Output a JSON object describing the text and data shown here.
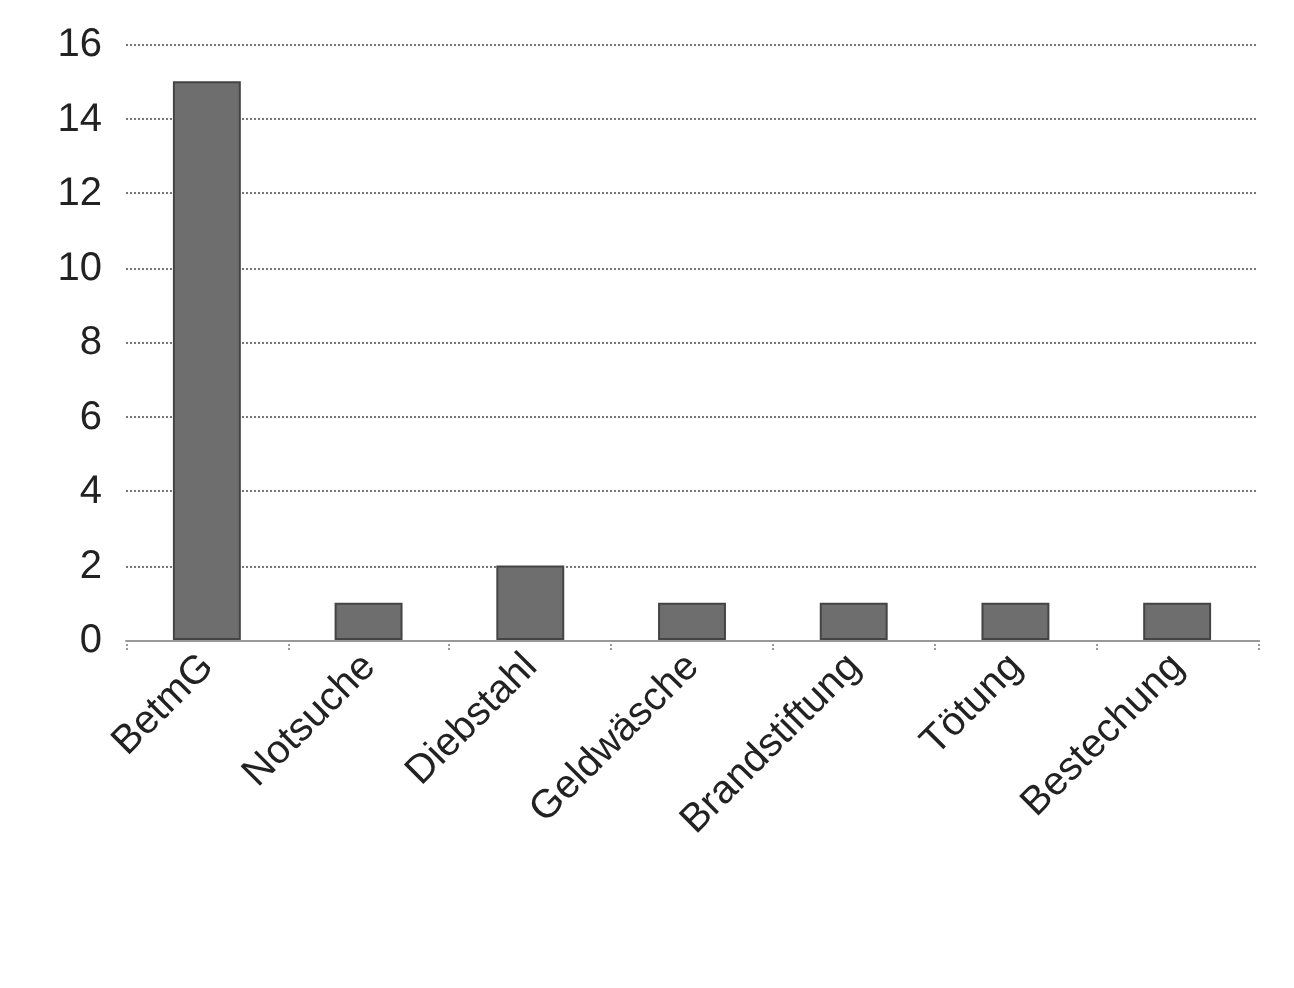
{
  "chart_data": {
    "type": "bar",
    "categories": [
      "BetmG",
      "Notsuche",
      "Diebstahl",
      "Geldwäsche",
      "Brandstiftung",
      "Tötung",
      "Bestechung"
    ],
    "values": [
      15,
      1,
      2,
      1,
      1,
      1,
      1
    ],
    "color": "#6e6e6e",
    "ylim": [
      0,
      16
    ],
    "yticks": [
      0,
      2,
      4,
      6,
      8,
      10,
      12,
      14,
      16
    ],
    "grid": "y"
  }
}
